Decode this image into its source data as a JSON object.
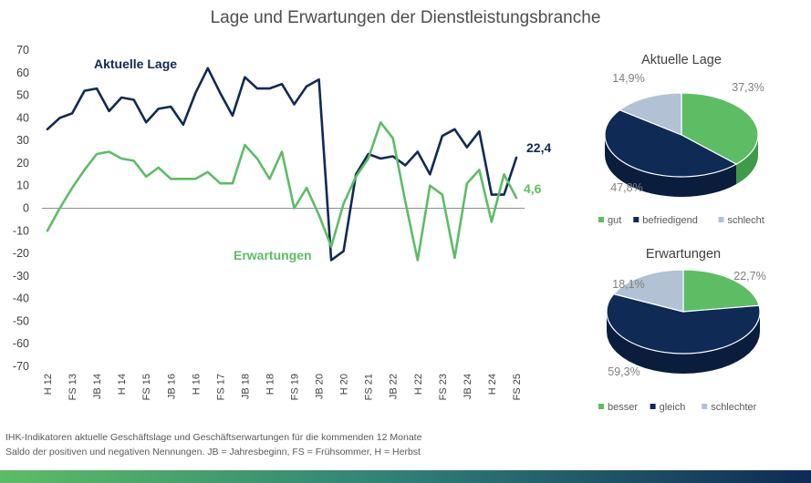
{
  "title": "Lage und Erwartungen der Dienstleistungsbranche",
  "colors": {
    "lage": "#0f2a55",
    "erwartungen": "#5cbd65",
    "gut": "#5cbd65",
    "befriedigend": "#0f2a55",
    "schlecht": "#b2c1d4",
    "axis_text": "#404040",
    "zero_line": "#8c8c8c"
  },
  "chart_data": [
    {
      "type": "line",
      "title": "Lage und Erwartungen der Dienstleistungsbranche",
      "ylim": [
        -70,
        70
      ],
      "yticks": [
        70,
        60,
        50,
        40,
        30,
        20,
        10,
        0,
        -10,
        -20,
        -30,
        -40,
        -50,
        -60,
        -70
      ],
      "xtick_labels": [
        "H 12",
        "FS 13",
        "JB 14",
        "H 14",
        "FS 15",
        "JB 16",
        "H 16",
        "FS 17",
        "JB 18",
        "H 18",
        "FS 19",
        "JB 20",
        "H 20",
        "FS 21",
        "JB 22",
        "H 22",
        "FS 23",
        "JB 24",
        "H 24",
        "FS 25"
      ],
      "series": [
        {
          "name": "Aktuelle Lage",
          "end_label": "22,4",
          "values": [
            35,
            40,
            42,
            52,
            53,
            43,
            49,
            48,
            38,
            44,
            45,
            37,
            51,
            62,
            51,
            41,
            58,
            53,
            53,
            55,
            46,
            54,
            57,
            -23,
            -19,
            15,
            24,
            22,
            23,
            19,
            25,
            15,
            32,
            35,
            27,
            34,
            6,
            6,
            22.4
          ]
        },
        {
          "name": "Erwartungen",
          "end_label": "4,6",
          "values": [
            -10,
            0,
            9,
            17,
            24,
            25,
            22,
            21,
            14,
            18,
            13,
            13,
            13,
            16,
            11,
            11,
            28,
            22,
            13,
            25,
            0,
            9,
            -3,
            -17,
            2,
            14,
            22,
            38,
            31,
            3,
            -23,
            10,
            6,
            -22,
            11,
            17,
            -6,
            15,
            4.6
          ]
        }
      ]
    },
    {
      "type": "pie",
      "title": "Aktuelle Lage",
      "labels": [
        "gut",
        "befriedigend",
        "schlecht"
      ],
      "values": [
        37.3,
        47.8,
        14.9
      ],
      "value_labels": [
        "37,3%",
        "47,8%",
        "14,9%"
      ]
    },
    {
      "type": "pie",
      "title": "Erwartungen",
      "labels": [
        "besser",
        "gleich",
        "schlechter"
      ],
      "values": [
        22.7,
        59.3,
        18.1
      ],
      "value_labels": [
        "22,7%",
        "59,3%",
        "18,1%"
      ]
    }
  ],
  "footnote_line1": "IHK-Indikatoren aktuelle Geschäftslage und Geschäftserwartungen für die kommenden 12 Monate",
  "footnote_line2": "Saldo der positiven und negativen Nennungen. JB = Jahresbeginn, FS = Frühsommer, H = Herbst"
}
